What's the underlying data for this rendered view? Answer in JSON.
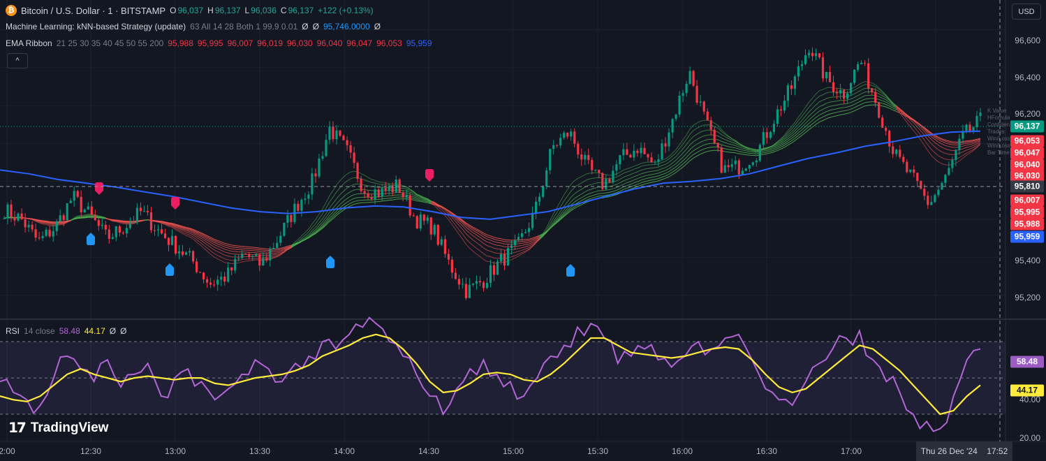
{
  "header": {
    "symbol_title": "Bitcoin / U.S. Dollar · 1 · BITSTAMP",
    "symbol_icon": "bitcoin-icon",
    "ohlc": {
      "o_label": "O",
      "o_value": "96,037",
      "h_label": "H",
      "h_value": "96,137",
      "l_label": "L",
      "l_value": "96,036",
      "c_label": "C",
      "c_value": "96,137",
      "change": "+122 (+0.13%)"
    }
  },
  "indicators": {
    "knn": {
      "name": "Machine Learning: kNN-based Strategy (update)",
      "params": "63 All 14 28 Both 1 99.9 0.01",
      "empty1": "Ø",
      "empty2": "Ø",
      "value": "95,746.0000",
      "empty3": "Ø"
    },
    "ema": {
      "name": "EMA Ribbon",
      "params": "21 25 30 35 40 45 50 55 200",
      "values": [
        "95,988",
        "95,995",
        "96,007",
        "96,019",
        "96,030",
        "96,040",
        "96,047",
        "96,053"
      ],
      "ema200": "95,959"
    },
    "collapse_icon": "chevron-up-icon",
    "collapse_label": "^"
  },
  "rsi_legend": {
    "name": "RSI",
    "params": "14 close",
    "rsi": "58.48",
    "ma": "44.17",
    "empty1": "Ø",
    "empty2": "Ø"
  },
  "currency_button": "USD",
  "price_axis": {
    "labels": [
      "96,600",
      "96,400",
      "96,200",
      "95,400",
      "95,200"
    ],
    "tags": {
      "last": "96,137",
      "crosshair": "95,810",
      "ribbon": [
        "96,053",
        "96,047",
        "96,040",
        "96,030",
        "96,007",
        "95,995",
        "95,988"
      ],
      "ema200": "95,959"
    }
  },
  "rsi_axis": {
    "labels": [
      "40.00",
      "20.00"
    ],
    "tags": {
      "rsi": "58.48",
      "ma": "44.17"
    }
  },
  "time_axis": {
    "labels": [
      "2:00",
      "12:30",
      "13:00",
      "13:30",
      "14:00",
      "14:30",
      "15:00",
      "15:30",
      "16:00",
      "16:30",
      "17:00"
    ],
    "crosshair_date": "Thu 26 Dec '24",
    "crosshair_time": "17:52"
  },
  "knn_panel_ghost": [
    "K Value",
    "HFomula",
    "Confiden",
    "Trades",
    "Win/Loss",
    "Win/Loss",
    "Bar Time"
  ],
  "logo": {
    "name": "TradingView",
    "icon": "tradingview-logo-icon"
  },
  "colors": {
    "background": "#131722",
    "up": "#26a69a",
    "down": "#f23645",
    "ema200": "#2962ff",
    "rsi": "#b266d6",
    "rsi_ma": "#ffeb3b",
    "buy_signal": "#2196f3",
    "sell_signal": "#e91e63"
  },
  "chart_data": {
    "type": "candlestick",
    "price_range": [
      95080,
      96720
    ],
    "price_ticks": [
      95200,
      95400,
      96200,
      96400,
      96600
    ],
    "rsi_range": [
      15,
      82
    ],
    "rsi_levels": [
      30,
      50,
      70
    ],
    "ema200_points": [
      95860,
      95840,
      95810,
      95790,
      95770,
      95745,
      95720,
      95690,
      95660,
      95640,
      95630,
      95640,
      95660,
      95670,
      95665,
      95640,
      95610,
      95600,
      95620,
      95640,
      95680,
      95720,
      95760,
      95790,
      95800,
      95815,
      95840,
      95880,
      95920,
      95950,
      95985,
      96010,
      96040,
      96060,
      96065
    ],
    "rsi_main_points": [
      48,
      42,
      38,
      35,
      50,
      62,
      55,
      48,
      60,
      45,
      52,
      58,
      40,
      50,
      55,
      48,
      38,
      44,
      52,
      60,
      55,
      48,
      58,
      62,
      70,
      66,
      74,
      78,
      80,
      70,
      62,
      52,
      40,
      30,
      44,
      55,
      60,
      52,
      48,
      40,
      50,
      62,
      68,
      78,
      80,
      72,
      58,
      62,
      66,
      60,
      56,
      62,
      70,
      66,
      72,
      74,
      60,
      44,
      38,
      35,
      48,
      58,
      66,
      72,
      76,
      60,
      48,
      42,
      30,
      26,
      22,
      40,
      60,
      66
    ],
    "rsi_ma_points": [
      40,
      38,
      37,
      40,
      46,
      52,
      55,
      52,
      50,
      48,
      50,
      51,
      50,
      49,
      50,
      50,
      47,
      46,
      48,
      50,
      51,
      52,
      54,
      57,
      62,
      65,
      68,
      72,
      74,
      72,
      66,
      58,
      48,
      42,
      43,
      47,
      52,
      53,
      52,
      49,
      48,
      52,
      58,
      65,
      72,
      72,
      68,
      64,
      63,
      62,
      61,
      62,
      64,
      66,
      67,
      66,
      60,
      52,
      45,
      42,
      44,
      50,
      56,
      62,
      68,
      66,
      60,
      54,
      46,
      38,
      30,
      32,
      40,
      46
    ]
  }
}
